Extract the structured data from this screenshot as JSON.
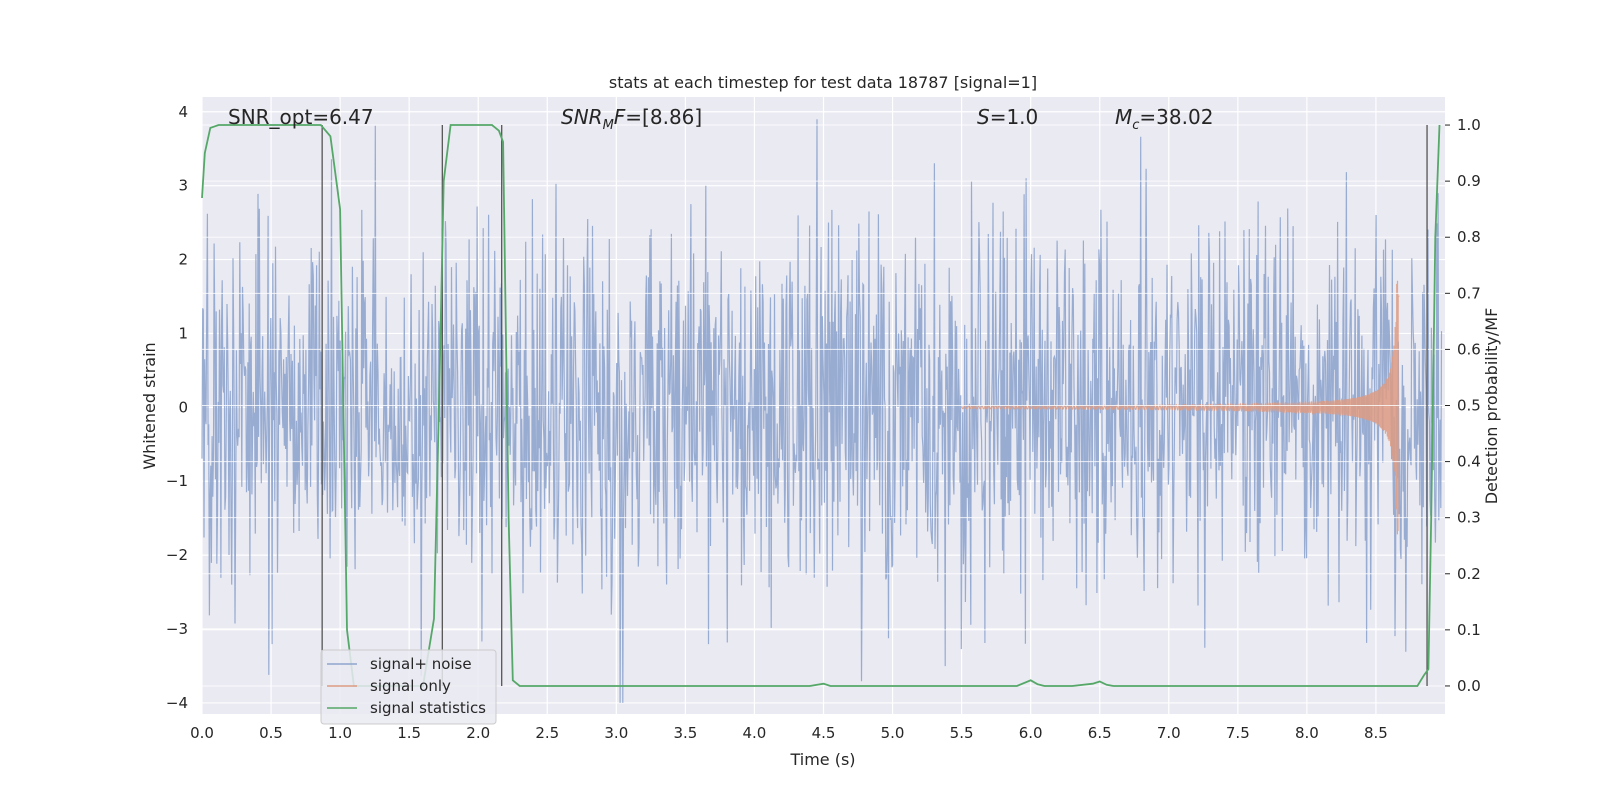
{
  "chart_data": {
    "type": "line",
    "title": "stats at each timestep for test data 18787 [signal=1]",
    "xlabel": "Time (s)",
    "ylabel": "Whitened strain",
    "y2label": "Detection probability/MF",
    "xlim": [
      0.0,
      9.0
    ],
    "ylim": [
      -4.15,
      4.2
    ],
    "y2lim": [
      -0.05,
      1.05
    ],
    "x_ticks": [
      "0.0",
      "0.5",
      "1.0",
      "1.5",
      "2.0",
      "2.5",
      "3.0",
      "3.5",
      "4.0",
      "4.5",
      "5.0",
      "5.5",
      "6.0",
      "6.5",
      "7.0",
      "7.5",
      "8.0",
      "8.5"
    ],
    "x_tick_values": [
      0.0,
      0.5,
      1.0,
      1.5,
      2.0,
      2.5,
      3.0,
      3.5,
      4.0,
      4.5,
      5.0,
      5.5,
      6.0,
      6.5,
      7.0,
      7.5,
      8.0,
      8.5
    ],
    "y_ticks": [
      "−4",
      "−3",
      "−2",
      "−1",
      "0",
      "1",
      "2",
      "3",
      "4"
    ],
    "y_tick_values": [
      -4,
      -3,
      -2,
      -1,
      0,
      1,
      2,
      3,
      4
    ],
    "y2_ticks": [
      "0.0",
      "0.1",
      "0.2",
      "0.3",
      "0.4",
      "0.5",
      "0.6",
      "0.7",
      "0.8",
      "0.9",
      "1.0"
    ],
    "y2_tick_values": [
      0.0,
      0.1,
      0.2,
      0.3,
      0.4,
      0.5,
      0.6,
      0.7,
      0.8,
      0.9,
      1.0
    ],
    "grid": true,
    "legend_position": "bottom-left",
    "annotations": {
      "snr_opt": "SNR_opt=6.47",
      "snr_mf_italic": "SNR",
      "snr_mf_sub": "M",
      "snr_mf_rest_italic": "F",
      "snr_mf_value": "=[8.86]",
      "s_italic": "S",
      "s_value": "=1.0",
      "mc_italic": "M",
      "mc_sub": "c",
      "mc_value": "=38.02"
    },
    "series": [
      {
        "name": "signal+ noise",
        "color": "#8fa5ce",
        "description_of_values": "whitened noisy strain, approx. Gaussian with amplitude up to ~±4",
        "sample_rate_hz": 204.8,
        "duration_s": 8.98,
        "seed": 18787
      },
      {
        "name": "signal only",
        "color": "#dd9b82",
        "chirp_peak_time_s": 8.65,
        "chirp_peak_amplitude": 1.75,
        "chirp_start_time_s": 5.5
      },
      {
        "name": "signal statistics",
        "color": "#55a868",
        "axis": "right",
        "x": [
          0.0,
          0.02,
          0.06,
          0.12,
          0.2,
          0.4,
          0.6,
          0.8,
          0.86,
          0.93,
          1.0,
          1.05,
          1.1,
          1.2,
          1.3,
          1.4,
          1.5,
          1.6,
          1.68,
          1.72,
          1.75,
          1.8,
          1.85,
          1.9,
          2.0,
          2.1,
          2.15,
          2.18,
          2.22,
          2.25,
          2.3,
          2.5,
          3.0,
          3.5,
          4.0,
          4.4,
          4.5,
          4.55,
          4.6,
          5.0,
          5.5,
          5.9,
          6.0,
          6.05,
          6.1,
          6.3,
          6.45,
          6.5,
          6.55,
          6.6,
          7.0,
          7.5,
          8.0,
          8.5,
          8.8,
          8.85,
          8.88,
          8.9,
          8.93,
          8.96
        ],
        "y": [
          0.87,
          0.95,
          0.995,
          1.0,
          1.0,
          1.0,
          1.0,
          1.0,
          1.0,
          0.98,
          0.85,
          0.1,
          0.0,
          0.0,
          0.0,
          0.0,
          0.0,
          0.0,
          0.12,
          0.55,
          0.9,
          1.0,
          1.0,
          1.0,
          1.0,
          1.0,
          0.99,
          0.97,
          0.3,
          0.01,
          0.0,
          0.0,
          0.0,
          0.0,
          0.0,
          0.0,
          0.004,
          0.0,
          0.0,
          0.0,
          0.0,
          0.0,
          0.01,
          0.003,
          0.0,
          0.0,
          0.004,
          0.008,
          0.002,
          0.0,
          0.0,
          0.0,
          0.0,
          0.0,
          0.0,
          0.02,
          0.03,
          0.3,
          0.8,
          1.0
        ]
      }
    ],
    "vertical_markers_s": [
      0.87,
      1.74,
      2.17,
      8.87
    ]
  }
}
